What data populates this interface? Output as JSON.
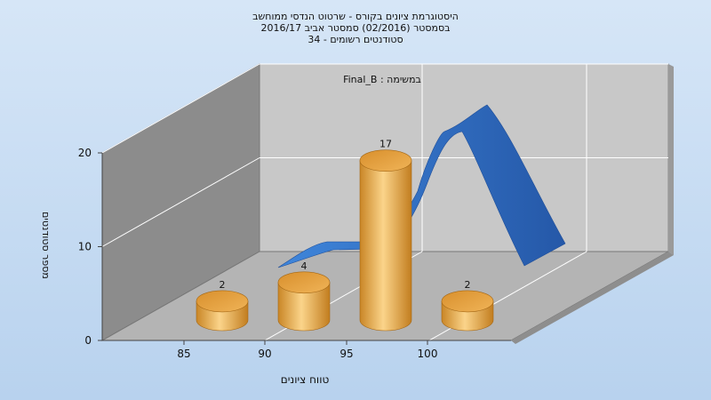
{
  "chart_data": {
    "type": "bar",
    "title_lines": [
      "היסטוגרמת ציונים בקורס - שרטוט הנדסי ממוחשב",
      "בסמסטר  (02/2016)  סמסטר אביב 2016/17",
      "סטודנטים רשומים - 34"
    ],
    "subtitle": "במשימה : Final_B",
    "xlabel": "טווח ציונים",
    "ylabel": "מספר סטודנטים",
    "categories": [
      "85",
      "90",
      "95",
      "100"
    ],
    "values": [
      2,
      4,
      17,
      2
    ],
    "data_labels": [
      "2",
      "4",
      "17",
      "2"
    ],
    "y_ticks": [
      0,
      10,
      20
    ],
    "ylim": [
      0,
      20
    ],
    "bar_color": "#e8a848",
    "curve_color": "#2f6fc4",
    "grid": true
  }
}
